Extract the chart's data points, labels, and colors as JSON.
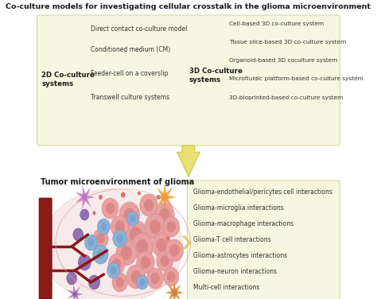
{
  "title": "Co-culture models for investigating cellular crosstalk in the glioma microenvironment",
  "background_color": "#ffffff",
  "top_box_color": "#f7f6e0",
  "top_box_edge": "#d8d8a0",
  "bottom_box_color": "#f7f6e0",
  "bottom_box_edge": "#d8d8a0",
  "label_2d": "2D Co-culture\nsystems",
  "label_3d": "3D Co-culture\nsystems",
  "items_2d": [
    "Direct contact co-culture model",
    "Conditioned medium (CM)",
    "Feeder-cell on a coverslip",
    "Transwell culture systems"
  ],
  "items_3d": [
    "Cell-based 3D co-culture system",
    "Tissue slice-based 3D co-culture system",
    "Organoid-based 3D coculture system",
    "Microfluidic platform-based co-culture system",
    "3D-bioprinted-based co-culture system"
  ],
  "bottom_label": "Tumor microenvironment of glioma",
  "bottom_right_items": [
    "Glioma-endothelial/pericytes cell interactions",
    "Glioma-microglia interactions",
    "Glioma-macrophage interactions",
    "Glioma-T cell interactions",
    "Glioma-astrocytes interactions",
    "Glioma-neuron interactions",
    "Multi-cell interactions"
  ],
  "arrow_fill": "#e8e070",
  "arrow_edge": "#c8c050",
  "chevron_fill": "#e8e070",
  "chevron_edge": "#c8c050"
}
